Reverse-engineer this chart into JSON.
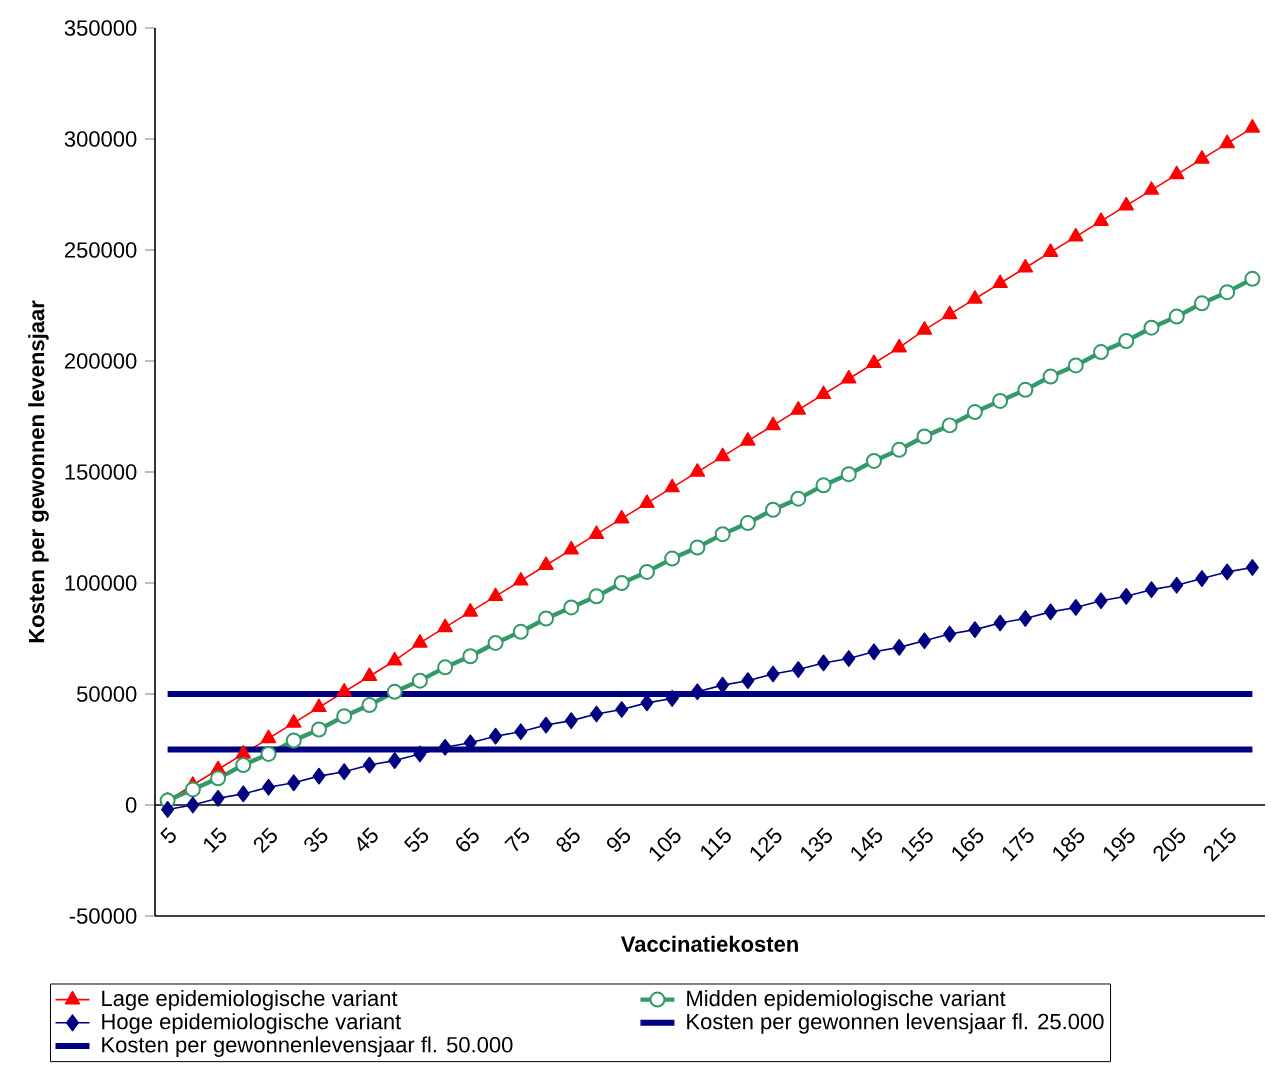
{
  "chart_data": {
    "type": "line",
    "xlabel": "Vaccinatiekosten",
    "ylabel": "Kosten per gewonnen levensjaar",
    "categories": [
      "5",
      null,
      "15",
      null,
      "25",
      null,
      "35",
      null,
      "45",
      null,
      "55",
      null,
      "65",
      null,
      "75",
      null,
      "85",
      null,
      "95",
      null,
      "105",
      null,
      "115",
      null,
      "125",
      null,
      "135",
      null,
      "145",
      null,
      "155",
      null,
      "165",
      null,
      "175",
      null,
      "185",
      null,
      "195",
      null,
      "205",
      null,
      "215",
      null
    ],
    "ylim": [
      -50000,
      350000
    ],
    "yticks": [
      -50000,
      0,
      50000,
      100000,
      150000,
      200000,
      250000,
      300000,
      350000
    ],
    "grid": false,
    "legend": "bottom",
    "series": [
      {
        "name": "Lage epidemiologische variant",
        "color": "#ff0000",
        "marker": "triangle",
        "values": [
          2000,
          9000,
          16000,
          23000,
          30000,
          37000,
          44000,
          51000,
          58000,
          65000,
          73000,
          80000,
          87000,
          94000,
          101000,
          108000,
          115000,
          122000,
          129000,
          136000,
          143000,
          150000,
          157000,
          164000,
          171000,
          178000,
          185000,
          192000,
          199000,
          206000,
          214000,
          221000,
          228000,
          235000,
          242000,
          249000,
          256000,
          263000,
          270000,
          277000,
          284000,
          291000,
          298000,
          305000
        ]
      },
      {
        "name": "Midden epidemiologische variant",
        "color": "#339966",
        "marker": "circle",
        "values": [
          2000,
          7000,
          12000,
          18000,
          23000,
          29000,
          34000,
          40000,
          45000,
          51000,
          56000,
          62000,
          67000,
          73000,
          78000,
          84000,
          89000,
          94000,
          100000,
          105000,
          111000,
          116000,
          122000,
          127000,
          133000,
          138000,
          144000,
          149000,
          155000,
          160000,
          166000,
          171000,
          177000,
          182000,
          187000,
          193000,
          198000,
          204000,
          209000,
          215000,
          220000,
          226000,
          231000,
          237000
        ]
      },
      {
        "name": "Hoge epidemiologische variant",
        "color": "#000080",
        "marker": "diamond",
        "values": [
          -2000,
          0,
          3000,
          5000,
          8000,
          10000,
          13000,
          15000,
          18000,
          20000,
          23000,
          26000,
          28000,
          31000,
          33000,
          36000,
          38000,
          41000,
          43000,
          46000,
          48000,
          51000,
          54000,
          56000,
          59000,
          61000,
          64000,
          66000,
          69000,
          71000,
          74000,
          77000,
          79000,
          82000,
          84000,
          87000,
          89000,
          92000,
          94000,
          97000,
          99000,
          102000,
          105000,
          107000
        ]
      },
      {
        "name": "Kosten per gewonnen levensjaar fl. 25.000",
        "color": "#000080",
        "marker": "none",
        "values": [
          25000,
          25000,
          25000,
          25000,
          25000,
          25000,
          25000,
          25000,
          25000,
          25000,
          25000,
          25000,
          25000,
          25000,
          25000,
          25000,
          25000,
          25000,
          25000,
          25000,
          25000,
          25000,
          25000,
          25000,
          25000,
          25000,
          25000,
          25000,
          25000,
          25000,
          25000,
          25000,
          25000,
          25000,
          25000,
          25000,
          25000,
          25000,
          25000,
          25000,
          25000,
          25000,
          25000,
          25000
        ]
      },
      {
        "name": "Kosten per gewonnenlevensjaar fl. 50.000",
        "color": "#000080",
        "marker": "none",
        "values": [
          50000,
          50000,
          50000,
          50000,
          50000,
          50000,
          50000,
          50000,
          50000,
          50000,
          50000,
          50000,
          50000,
          50000,
          50000,
          50000,
          50000,
          50000,
          50000,
          50000,
          50000,
          50000,
          50000,
          50000,
          50000,
          50000,
          50000,
          50000,
          50000,
          50000,
          50000,
          50000,
          50000,
          50000,
          50000,
          50000,
          50000,
          50000,
          50000,
          50000,
          50000,
          50000,
          50000,
          50000
        ]
      }
    ]
  }
}
